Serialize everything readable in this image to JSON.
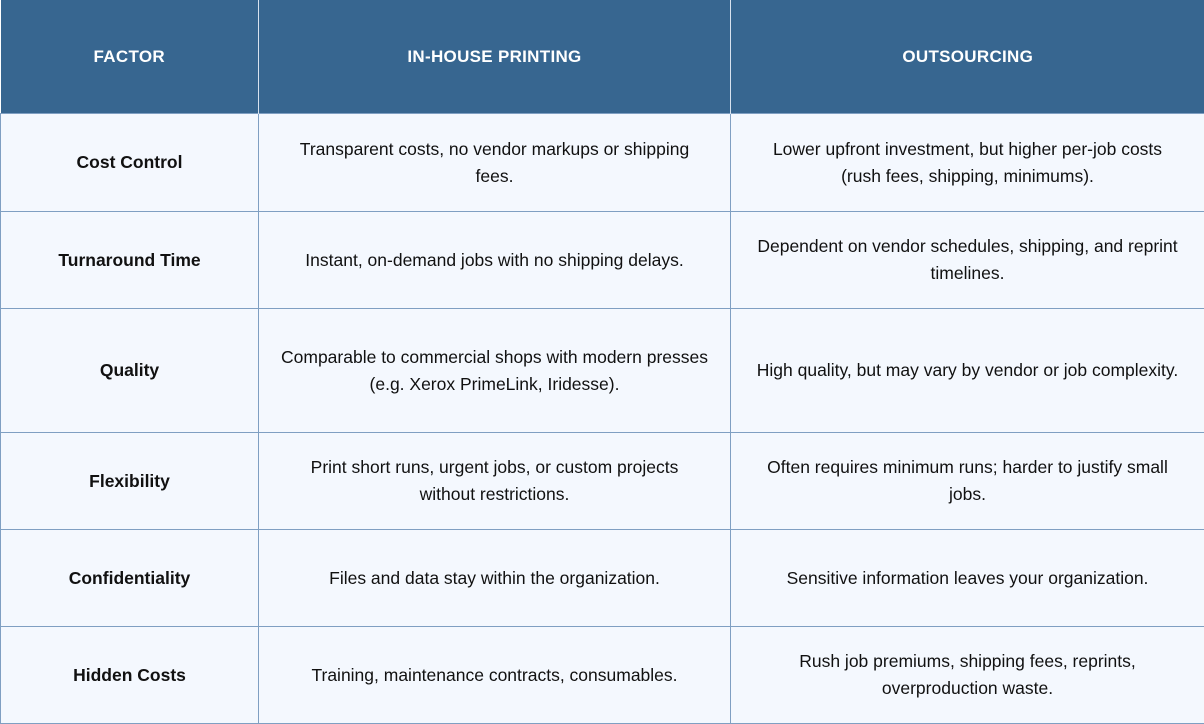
{
  "headers": [
    "FACTOR",
    "IN-HOUSE PRINTING",
    "OUTSOURCING"
  ],
  "rows": [
    {
      "factor": "Cost Control",
      "inhouse": "Transparent costs, no vendor markups or shipping fees.",
      "outsourcing": "Lower upfront investment, but higher per-job costs (rush fees, shipping, minimums)."
    },
    {
      "factor": "Turnaround Time",
      "inhouse": "Instant, on-demand jobs with no shipping delays.",
      "outsourcing": "Dependent on vendor schedules, shipping, and reprint timelines."
    },
    {
      "factor": "Quality",
      "inhouse": "Comparable to commercial shops with modern presses (e.g. Xerox PrimeLink, Iridesse).",
      "outsourcing": "High quality, but may vary by vendor or job complexity."
    },
    {
      "factor": "Flexibility",
      "inhouse": "Print short runs, urgent jobs, or custom projects without restrictions.",
      "outsourcing": "Often requires minimum runs; harder to justify small jobs."
    },
    {
      "factor": "Confidentiality",
      "inhouse": "Files and data stay within the organization.",
      "outsourcing": "Sensitive information leaves your organization."
    },
    {
      "factor": "Hidden Costs",
      "inhouse": "Training, maintenance contracts, consumables.",
      "outsourcing": "Rush job premiums, shipping fees, reprints, overproduction waste."
    }
  ],
  "colors": {
    "header": "#376690",
    "cell": "#f4f8fe",
    "border": "#7f9fc2"
  }
}
